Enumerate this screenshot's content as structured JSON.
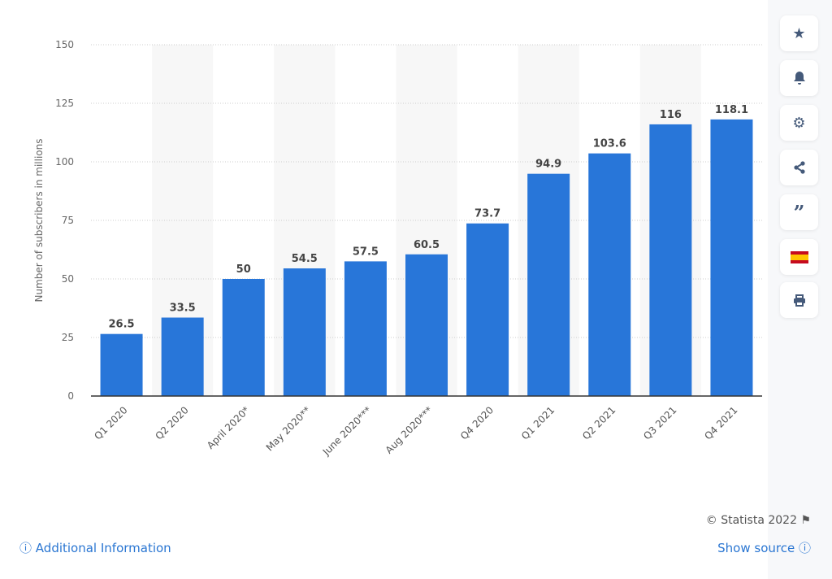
{
  "chart_data": {
    "type": "bar",
    "categories": [
      "Q1 2020",
      "Q2 2020",
      "April 2020*",
      "May 2020**",
      "June 2020***",
      "Aug 2020***",
      "Q4 2020",
      "Q1 2021",
      "Q2 2021",
      "Q3 2021",
      "Q4 2021"
    ],
    "values": [
      26.5,
      33.5,
      50,
      54.5,
      57.5,
      60.5,
      73.7,
      94.9,
      103.6,
      116,
      118.1
    ],
    "value_labels": [
      "26.5",
      "33.5",
      "50",
      "54.5",
      "57.5",
      "60.5",
      "73.7",
      "94.9",
      "103.6",
      "116",
      "118.1"
    ],
    "ylabel": "Number of subscribers in millions",
    "ylim": [
      0,
      150
    ],
    "yticks": [
      0,
      25,
      50,
      75,
      100,
      125,
      150
    ],
    "grid": true,
    "bar_color": "#2876d9"
  },
  "sidebar": {
    "icons": [
      "star-icon",
      "bell-icon",
      "gear-icon",
      "share-icon",
      "quote-icon",
      "spain-flag-icon",
      "print-icon"
    ]
  },
  "footer": {
    "additional_info": "Additional Information",
    "show_source": "Show source",
    "copyright": "© Statista 2022"
  }
}
